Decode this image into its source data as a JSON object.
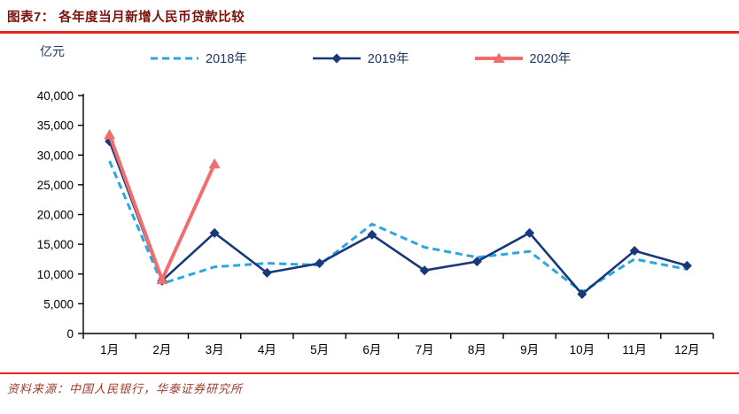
{
  "page": {
    "title": "图表7：  各年度当月新增人民币贷款比较",
    "source_note": "资料来源：中国人民银行，华泰证券研究所"
  },
  "colors": {
    "title_text": "#7a120d",
    "accent_rule": "#e8231a",
    "source_text": "#9c3a28",
    "legend_text": "#1f3864",
    "axis_line": "#000000",
    "tick_text": "#000000"
  },
  "chart_data": {
    "type": "line",
    "title": "各年度当月新增人民币贷款比较",
    "unit_label": "亿元",
    "ylabel": "亿元",
    "xlabel": "",
    "grid": false,
    "legend_position": "top",
    "ylim": [
      0,
      40000
    ],
    "ytick_step": 5000,
    "ytick_labels": [
      "0",
      "5,000",
      "10,000",
      "15,000",
      "20,000",
      "25,000",
      "30,000",
      "35,000",
      "40,000"
    ],
    "categories": [
      "1月",
      "2月",
      "3月",
      "4月",
      "5月",
      "6月",
      "7月",
      "8月",
      "9月",
      "10月",
      "11月",
      "12月"
    ],
    "series": [
      {
        "name": "2018年",
        "color": "#2aa7e1",
        "line_style": "dashed",
        "marker": "none",
        "stroke_width": 3,
        "values": [
          29000,
          8393,
          11200,
          11800,
          11500,
          18400,
          14500,
          12800,
          13800,
          6970,
          12500,
          10800
        ]
      },
      {
        "name": "2019年",
        "color": "#17397b",
        "line_style": "solid",
        "marker": "diamond",
        "stroke_width": 2.6,
        "values": [
          32300,
          8858,
          16900,
          10200,
          11800,
          16600,
          10600,
          12100,
          16900,
          6613,
          13900,
          11400
        ]
      },
      {
        "name": "2020年",
        "color": "#f26d6e",
        "line_style": "solid",
        "marker": "triangle",
        "stroke_width": 4,
        "values": [
          33400,
          9057,
          28500,
          null,
          null,
          null,
          null,
          null,
          null,
          null,
          null,
          null
        ]
      }
    ]
  }
}
